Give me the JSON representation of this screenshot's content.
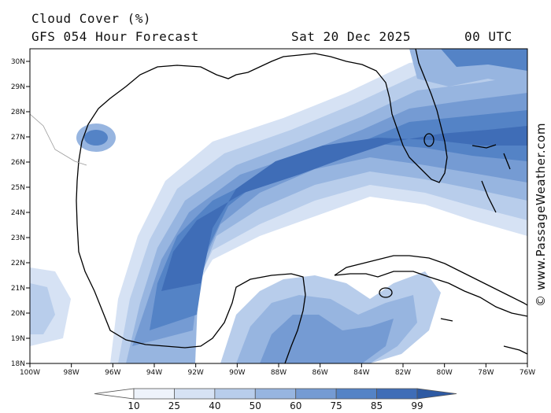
{
  "header": {
    "title": "Cloud Cover (%)",
    "subtitle": "GFS 054 Hour Forecast",
    "date": "Sat 20 Dec 2025",
    "time": "00 UTC"
  },
  "credit": "© www.PassageWeather.com",
  "axes": {
    "lat_labels": [
      "30N",
      "29N",
      "28N",
      "27N",
      "26N",
      "25N",
      "24N",
      "23N",
      "22N",
      "21N",
      "20N",
      "19N",
      "18N"
    ],
    "lon_labels": [
      "100W",
      "98W",
      "96W",
      "94W",
      "92W",
      "90W",
      "88W",
      "86W",
      "84W",
      "82W",
      "80W",
      "78W",
      "76W"
    ]
  },
  "colorbar": {
    "ticks": [
      "10",
      "25",
      "40",
      "50",
      "60",
      "75",
      "85",
      "99"
    ],
    "colors": [
      "#ffffff",
      "#eef3fb",
      "#d6e2f4",
      "#b8cdeb",
      "#97b5e0",
      "#759bd3",
      "#5483c6",
      "#3f6db7",
      "#2e5aa3"
    ]
  }
}
